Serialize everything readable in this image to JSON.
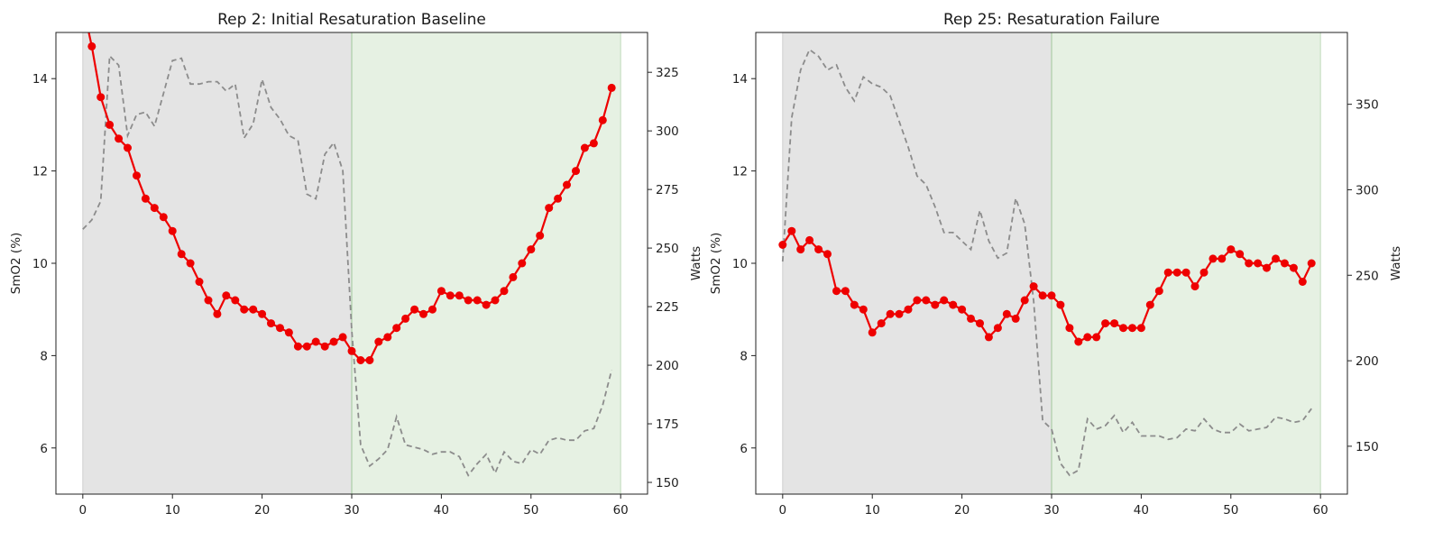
{
  "chart_data": [
    {
      "type": "line",
      "title": "Rep 2: Initial Resaturation Baseline",
      "xlabel": "",
      "ylabel": "SmO2 (%)",
      "ylabel_right": "Watts",
      "xlim": [
        -3,
        63
      ],
      "ylim": [
        5,
        15
      ],
      "ylim_right": [
        145,
        342
      ],
      "xticks": [
        0,
        10,
        20,
        30,
        40,
        50,
        60
      ],
      "yticks": [
        6,
        8,
        10,
        12,
        14
      ],
      "yticks_right": [
        150,
        175,
        200,
        225,
        250,
        275,
        300,
        325
      ],
      "grid": false,
      "shaded_regions": [
        {
          "x0": 0,
          "x1": 30,
          "color": "#e4e4e4"
        },
        {
          "x0": 30,
          "x1": 60,
          "color": "#e6f1e3"
        }
      ],
      "colors": {
        "smo2": "#ee0000",
        "watts": "#8c8c8c",
        "divider": "#9fc89a",
        "boundary": "#cfcfcf"
      },
      "series": [
        {
          "axis": "left",
          "style": "solid-markers",
          "x": [
            0,
            1,
            2,
            3,
            4,
            5,
            6,
            7,
            8,
            9,
            10,
            11,
            12,
            13,
            14,
            15,
            16,
            17,
            18,
            19,
            20,
            21,
            22,
            23,
            24,
            25,
            26,
            27,
            28,
            29,
            30,
            31,
            32,
            33,
            34,
            35,
            36,
            37,
            38,
            39,
            40,
            41,
            42,
            43,
            44,
            45,
            46,
            47,
            48,
            49,
            50,
            51,
            52,
            53,
            54,
            55,
            56,
            57,
            58,
            59
          ],
          "values": [
            15.6,
            14.7,
            13.6,
            13.0,
            12.7,
            12.5,
            11.9,
            11.4,
            11.2,
            11.0,
            10.7,
            10.2,
            10.0,
            9.6,
            9.2,
            8.9,
            9.3,
            9.2,
            9.0,
            9.0,
            8.9,
            8.7,
            8.6,
            8.5,
            8.2,
            8.2,
            8.3,
            8.2,
            8.3,
            8.4,
            8.1,
            7.9,
            7.9,
            8.3,
            8.4,
            8.6,
            8.8,
            9.0,
            8.9,
            9.0,
            9.4,
            9.3,
            9.3,
            9.2,
            9.2,
            9.1,
            9.2,
            9.4,
            9.7,
            10.0,
            10.3,
            10.6,
            11.2,
            11.4,
            11.7,
            12.0,
            12.5,
            12.6,
            13.1,
            13.8
          ]
        },
        {
          "axis": "right",
          "style": "dashed",
          "x": [
            0,
            1,
            2,
            3,
            4,
            5,
            6,
            7,
            8,
            9,
            10,
            11,
            12,
            13,
            14,
            15,
            16,
            17,
            18,
            19,
            20,
            21,
            22,
            23,
            24,
            25,
            26,
            27,
            28,
            29,
            30,
            31,
            32,
            33,
            34,
            35,
            36,
            37,
            38,
            39,
            40,
            41,
            42,
            43,
            44,
            45,
            46,
            47,
            48,
            49,
            50,
            51,
            52,
            53,
            54,
            55,
            56,
            57,
            58,
            59
          ],
          "values": [
            258,
            262,
            270,
            332,
            328,
            298,
            307,
            308,
            302,
            316,
            330,
            331,
            320,
            320,
            321,
            321,
            317,
            320,
            297,
            303,
            322,
            310,
            305,
            298,
            296,
            273,
            271,
            290,
            295,
            283,
            215,
            166,
            157,
            160,
            164,
            178,
            166,
            165,
            164,
            162,
            163,
            163,
            161,
            153,
            158,
            162,
            154,
            163,
            159,
            158,
            164,
            162,
            168,
            169,
            168,
            168,
            172,
            173,
            183,
            198
          ]
        }
      ]
    },
    {
      "type": "line",
      "title": "Rep 25: Resaturation Failure",
      "xlabel": "",
      "ylabel": "SmO2 (%)",
      "ylabel_right": "Watts",
      "xlim": [
        -3,
        63
      ],
      "ylim": [
        5,
        15
      ],
      "ylim_right": [
        122,
        392
      ],
      "xticks": [
        0,
        10,
        20,
        30,
        40,
        50,
        60
      ],
      "yticks": [
        6,
        8,
        10,
        12,
        14
      ],
      "yticks_right": [
        150,
        200,
        250,
        300,
        350
      ],
      "grid": false,
      "shaded_regions": [
        {
          "x0": 0,
          "x1": 30,
          "color": "#e4e4e4"
        },
        {
          "x0": 30,
          "x1": 60,
          "color": "#e6f1e3"
        }
      ],
      "colors": {
        "smo2": "#ee0000",
        "watts": "#8c8c8c",
        "divider": "#9fc89a",
        "boundary": "#cfcfcf"
      },
      "series": [
        {
          "axis": "left",
          "style": "solid-markers",
          "x": [
            0,
            1,
            2,
            3,
            4,
            5,
            6,
            7,
            8,
            9,
            10,
            11,
            12,
            13,
            14,
            15,
            16,
            17,
            18,
            19,
            20,
            21,
            22,
            23,
            24,
            25,
            26,
            27,
            28,
            29,
            30,
            31,
            32,
            33,
            34,
            35,
            36,
            37,
            38,
            39,
            40,
            41,
            42,
            43,
            44,
            45,
            46,
            47,
            48,
            49,
            50,
            51,
            52,
            53,
            54,
            55,
            56,
            57,
            58,
            59
          ],
          "values": [
            10.4,
            10.7,
            10.3,
            10.5,
            10.3,
            10.2,
            9.4,
            9.4,
            9.1,
            9.0,
            8.5,
            8.7,
            8.9,
            8.9,
            9.0,
            9.2,
            9.2,
            9.1,
            9.2,
            9.1,
            9.0,
            8.8,
            8.7,
            8.4,
            8.6,
            8.9,
            8.8,
            9.2,
            9.5,
            9.3,
            9.3,
            9.1,
            8.6,
            8.3,
            8.4,
            8.4,
            8.7,
            8.7,
            8.6,
            8.6,
            8.6,
            9.1,
            9.4,
            9.8,
            9.8,
            9.8,
            9.5,
            9.8,
            10.1,
            10.1,
            10.3,
            10.2,
            10.0,
            10.0,
            9.9,
            10.1,
            10.0,
            9.9,
            9.6,
            10.0
          ]
        },
        {
          "axis": "right",
          "style": "dashed",
          "x": [
            0,
            1,
            2,
            3,
            4,
            5,
            6,
            7,
            8,
            9,
            10,
            11,
            12,
            13,
            14,
            15,
            16,
            17,
            18,
            19,
            20,
            21,
            22,
            23,
            24,
            25,
            26,
            27,
            28,
            29,
            30,
            31,
            32,
            33,
            34,
            35,
            36,
            37,
            38,
            39,
            40,
            41,
            42,
            43,
            44,
            45,
            46,
            47,
            48,
            49,
            50,
            51,
            52,
            53,
            54,
            55,
            56,
            57,
            58,
            59
          ],
          "values": [
            258,
            342,
            370,
            382,
            378,
            370,
            373,
            360,
            352,
            366,
            362,
            360,
            355,
            340,
            325,
            308,
            303,
            290,
            275,
            275,
            270,
            265,
            288,
            270,
            260,
            263,
            295,
            280,
            235,
            165,
            160,
            140,
            133,
            136,
            166,
            160,
            162,
            168,
            158,
            164,
            156,
            156,
            156,
            154,
            155,
            160,
            159,
            166,
            160,
            158,
            158,
            163,
            159,
            160,
            161,
            167,
            166,
            164,
            165,
            172
          ]
        }
      ]
    }
  ]
}
